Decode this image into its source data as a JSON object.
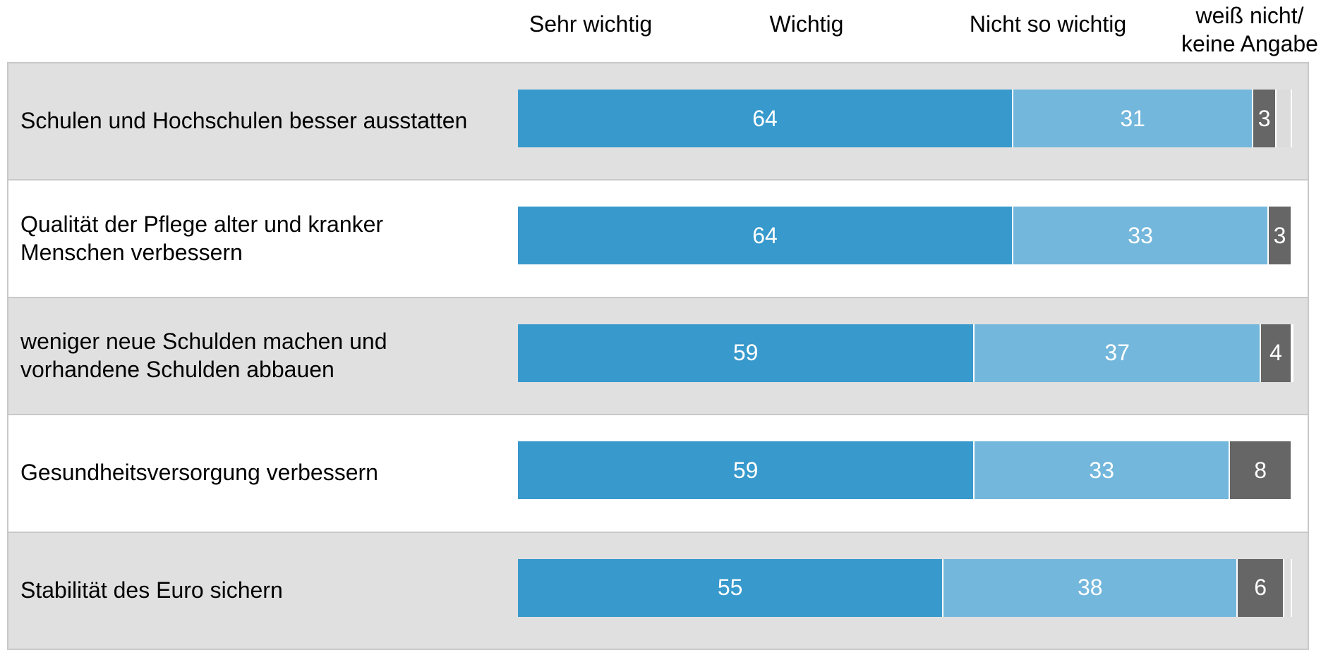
{
  "chart_data": {
    "type": "stacked-bar-horizontal",
    "categories": [
      "Schulen und Hochschulen besser ausstatten",
      "Qualität der Pflege alter und kranker Menschen verbessern",
      "weniger neue Schulden machen und vorhandene Schulden abbauen",
      "Gesundheitsversorgung verbessern",
      "Stabilität des Euro sichern"
    ],
    "series": [
      {
        "name": "Sehr wichtig",
        "color": "#3799cc",
        "values": [
          64,
          64,
          59,
          59,
          55
        ]
      },
      {
        "name": "Wichtig",
        "color": "#74b7dc",
        "values": [
          31,
          33,
          37,
          33,
          38
        ]
      },
      {
        "name": "Nicht so wichtig",
        "color": "#666666",
        "values": [
          3,
          3,
          4,
          8,
          6
        ]
      },
      {
        "name": "weiß nicht/ keine Angabe",
        "color": "#dcdcdc",
        "values": [
          2,
          0,
          0,
          0,
          1
        ],
        "value_labels": [
          null,
          null,
          null,
          null,
          null
        ]
      }
    ],
    "xlim": [
      0,
      100
    ]
  }
}
